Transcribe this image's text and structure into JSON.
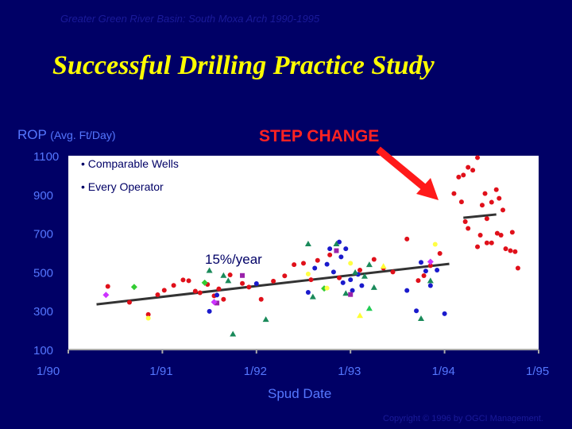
{
  "header": {
    "subtitle": "Greater Green River Basin: South Moxa Arch  1990-1995",
    "title": "Successful Drilling Practice Study"
  },
  "callout": {
    "step_change": "STEP CHANGE",
    "arrow_color": "#ff1a1a"
  },
  "notes": [
    "• Comparable Wells",
    "• Every Operator"
  ],
  "footer": {
    "copyright": "Copyright © 1996 by OGCI Management."
  },
  "colors": {
    "background": "#000066",
    "plot_bg": "#ffffff",
    "axis_text": "#5577ff",
    "title": "#ffff00"
  },
  "chart_data": {
    "type": "scatter",
    "ylabel": "ROP",
    "ylabel_unit": "(Avg. Ft/Day)",
    "xlabel": "Spud Date",
    "x_ticks": [
      "1/90",
      "1/91",
      "1/92",
      "1/93",
      "1/94",
      "1/95"
    ],
    "y_ticks": [
      100,
      300,
      500,
      700,
      900,
      1100
    ],
    "xlim": [
      1990,
      1995
    ],
    "ylim": [
      100,
      1100
    ],
    "trend_label": "15%/year",
    "trend_lines": [
      {
        "from": [
          1990.3,
          333
        ],
        "to": [
          1994.05,
          542
        ],
        "color": "#333333"
      },
      {
        "from": [
          1994.2,
          780
        ],
        "to": [
          1994.55,
          797
        ],
        "color": "#333333"
      }
    ],
    "series": [
      {
        "marker": "circle",
        "color": "#e0101a",
        "points": [
          [
            1990.42,
            426
          ],
          [
            1990.65,
            344
          ],
          [
            1990.85,
            281
          ],
          [
            1990.95,
            383
          ],
          [
            1991.02,
            406
          ],
          [
            1991.12,
            431
          ],
          [
            1991.22,
            459
          ],
          [
            1991.28,
            455
          ],
          [
            1991.35,
            401
          ],
          [
            1991.4,
            393
          ],
          [
            1991.48,
            436
          ],
          [
            1991.55,
            377
          ],
          [
            1991.6,
            413
          ],
          [
            1991.65,
            359
          ],
          [
            1991.72,
            485
          ],
          [
            1991.85,
            441
          ],
          [
            1991.92,
            422
          ],
          [
            1992.05,
            359
          ],
          [
            1992.18,
            453
          ],
          [
            1992.3,
            480
          ],
          [
            1992.4,
            538
          ],
          [
            1992.5,
            545
          ],
          [
            1992.58,
            460
          ],
          [
            1992.65,
            560
          ],
          [
            1992.78,
            588
          ],
          [
            1992.88,
            470
          ],
          [
            1993.1,
            510
          ],
          [
            1993.25,
            565
          ],
          [
            1993.35,
            520
          ],
          [
            1993.45,
            500
          ],
          [
            1993.6,
            670
          ],
          [
            1993.72,
            456
          ],
          [
            1993.78,
            481
          ],
          [
            1993.85,
            533
          ],
          [
            1993.95,
            596
          ],
          [
            1994.1,
            905
          ],
          [
            1994.15,
            990
          ],
          [
            1994.2,
            1000
          ],
          [
            1994.25,
            1040
          ],
          [
            1994.3,
            1025
          ],
          [
            1994.35,
            1090
          ],
          [
            1994.18,
            862
          ],
          [
            1994.22,
            760
          ],
          [
            1994.25,
            725
          ],
          [
            1994.4,
            845
          ],
          [
            1994.43,
            905
          ],
          [
            1994.45,
            775
          ],
          [
            1994.5,
            860
          ],
          [
            1994.55,
            925
          ],
          [
            1994.58,
            880
          ],
          [
            1994.62,
            820
          ],
          [
            1994.65,
            620
          ],
          [
            1994.35,
            630
          ],
          [
            1994.38,
            690
          ],
          [
            1994.45,
            650
          ],
          [
            1994.5,
            650
          ],
          [
            1994.56,
            700
          ],
          [
            1994.6,
            690
          ],
          [
            1994.7,
            610
          ],
          [
            1994.72,
            705
          ],
          [
            1994.75,
            605
          ],
          [
            1994.78,
            520
          ]
        ]
      },
      {
        "marker": "circle",
        "color": "#1a1acc",
        "points": [
          [
            1991.5,
            297
          ],
          [
            1991.58,
            381
          ],
          [
            1992.0,
            440
          ],
          [
            1992.55,
            395
          ],
          [
            1992.62,
            520
          ],
          [
            1992.75,
            540
          ],
          [
            1992.78,
            620
          ],
          [
            1992.82,
            500
          ],
          [
            1992.88,
            655
          ],
          [
            1992.9,
            578
          ],
          [
            1992.92,
            445
          ],
          [
            1992.95,
            620
          ],
          [
            1993.0,
            460
          ],
          [
            1993.02,
            405
          ],
          [
            1993.08,
            488
          ],
          [
            1993.12,
            430
          ],
          [
            1993.6,
            405
          ],
          [
            1993.7,
            300
          ],
          [
            1993.75,
            550
          ],
          [
            1993.8,
            505
          ],
          [
            1993.85,
            430
          ],
          [
            1993.92,
            510
          ],
          [
            1994.0,
            285
          ]
        ]
      },
      {
        "marker": "triangle",
        "color": "#1a8a5a",
        "points": [
          [
            1991.5,
            508
          ],
          [
            1991.65,
            482
          ],
          [
            1991.7,
            455
          ],
          [
            1991.75,
            180
          ],
          [
            1992.1,
            255
          ],
          [
            1992.55,
            645
          ],
          [
            1992.6,
            372
          ],
          [
            1992.85,
            645
          ],
          [
            1992.95,
            390
          ],
          [
            1993.05,
            498
          ],
          [
            1993.15,
            478
          ],
          [
            1993.2,
            538
          ],
          [
            1993.25,
            420
          ],
          [
            1993.75,
            260
          ],
          [
            1993.85,
            455
          ]
        ]
      },
      {
        "marker": "triangle",
        "color": "#22cc55",
        "points": [
          [
            1993.2,
            312
          ]
        ]
      },
      {
        "marker": "triangle",
        "color": "#ffff33",
        "points": [
          [
            1993.1,
            275
          ],
          [
            1993.35,
            530
          ]
        ]
      },
      {
        "marker": "square",
        "color": "#9922aa",
        "points": [
          [
            1991.58,
            340
          ],
          [
            1991.85,
            482
          ],
          [
            1992.85,
            610
          ],
          [
            1993.0,
            384
          ]
        ]
      },
      {
        "marker": "diamond",
        "color": "#cc33ff",
        "points": [
          [
            1990.4,
            382
          ],
          [
            1991.55,
            345
          ],
          [
            1993.85,
            553
          ]
        ]
      },
      {
        "marker": "diamond",
        "color": "#33cc33",
        "points": [
          [
            1990.7,
            423
          ],
          [
            1991.45,
            445
          ],
          [
            1992.72,
            415
          ]
        ]
      },
      {
        "marker": "circle",
        "color": "#ffff44",
        "points": [
          [
            1990.85,
            262
          ],
          [
            1992.55,
            490
          ],
          [
            1992.75,
            417
          ],
          [
            1993.0,
            545
          ],
          [
            1993.9,
            643
          ]
        ]
      }
    ]
  }
}
